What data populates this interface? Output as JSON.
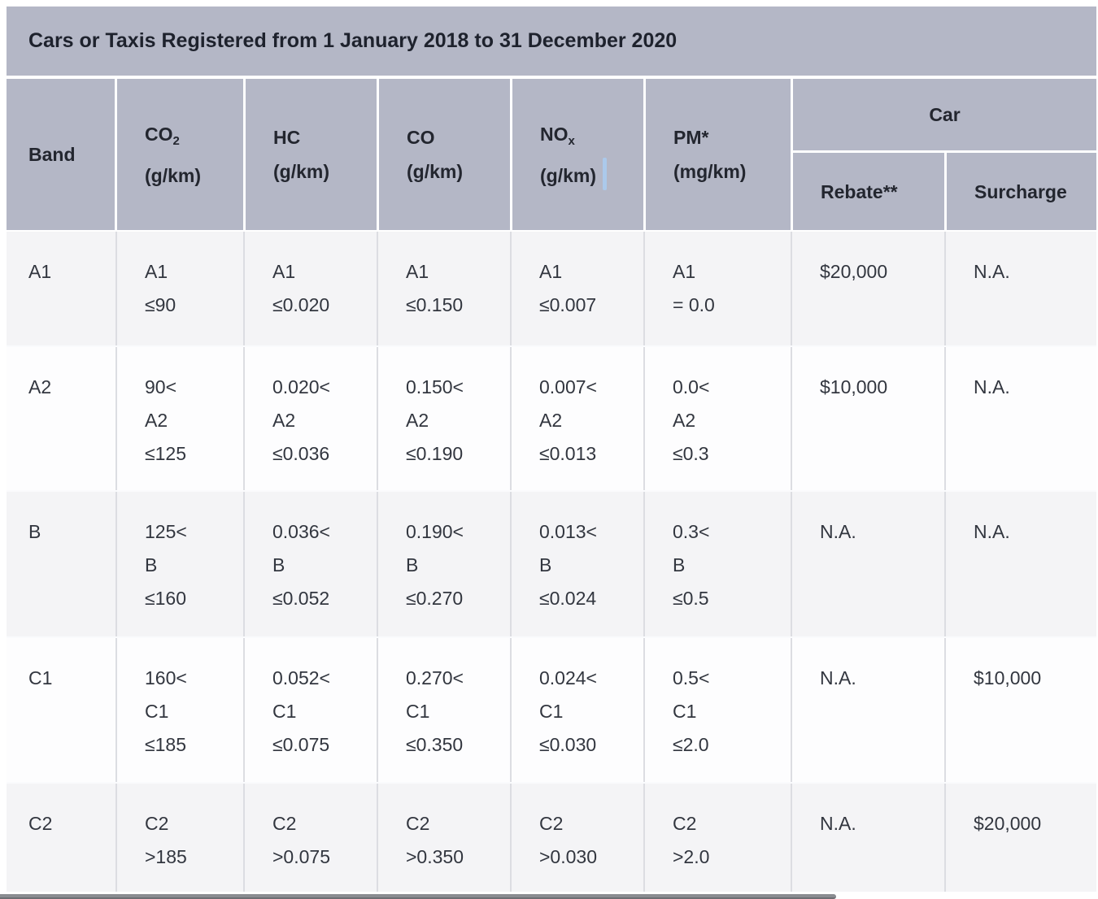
{
  "title": "Cars or Taxis Registered from 1 January 2018 to 31 December 2020",
  "header": {
    "band_label": "Band",
    "pollutant_columns": [
      {
        "id": "co2",
        "label": "CO",
        "sub": "2",
        "unit": "(g/km)"
      },
      {
        "id": "hc",
        "label": "HC",
        "sub": "",
        "unit": "(g/km)"
      },
      {
        "id": "co",
        "label": "CO",
        "sub": "",
        "unit": "(g/km)"
      },
      {
        "id": "nox",
        "label": "NO",
        "sub": "x",
        "unit": "(g/km)"
      },
      {
        "id": "pm",
        "label": "PM*",
        "sub": "",
        "unit": "(mg/km)"
      }
    ],
    "car_group": {
      "label": "Car",
      "rebate_label": "Rebate**",
      "surcharge_label": "Surcharge"
    }
  },
  "rows": [
    {
      "band": "A1",
      "co2": [
        "A1",
        "≤90"
      ],
      "hc": [
        "A1",
        "≤0.020"
      ],
      "co": [
        "A1",
        "≤0.150"
      ],
      "nox": [
        "A1",
        "≤0.007"
      ],
      "pm": [
        "A1",
        "= 0.0"
      ],
      "rebate": "$20,000",
      "surcharge": "N.A."
    },
    {
      "band": "A2",
      "co2": [
        "90<",
        "A2",
        "≤125"
      ],
      "hc": [
        "0.020<",
        "A2",
        "≤0.036"
      ],
      "co": [
        "0.150<",
        "A2",
        "≤0.190"
      ],
      "nox": [
        "0.007<",
        "A2",
        "≤0.013"
      ],
      "pm": [
        "0.0<",
        "A2",
        "≤0.3"
      ],
      "rebate": "$10,000",
      "surcharge": "N.A."
    },
    {
      "band": "B",
      "co2": [
        "125<",
        "B",
        "≤160"
      ],
      "hc": [
        "0.036<",
        "B",
        "≤0.052"
      ],
      "co": [
        "0.190<",
        "B",
        "≤0.270"
      ],
      "nox": [
        "0.013<",
        "B",
        "≤0.024"
      ],
      "pm": [
        "0.3<",
        "B",
        "≤0.5"
      ],
      "rebate": "N.A.",
      "surcharge": "N.A."
    },
    {
      "band": "C1",
      "co2": [
        "160<",
        "C1",
        "≤185"
      ],
      "hc": [
        "0.052<",
        "C1",
        "≤0.075"
      ],
      "co": [
        "0.270<",
        "C1",
        "≤0.350"
      ],
      "nox": [
        "0.024<",
        "C1",
        "≤0.030"
      ],
      "pm": [
        "0.5<",
        "C1",
        "≤2.0"
      ],
      "rebate": "N.A.",
      "surcharge": "$10,000"
    },
    {
      "band": "C2",
      "co2": [
        "C2",
        ">185"
      ],
      "hc": [
        "C2",
        ">0.075"
      ],
      "co": [
        "C2",
        ">0.350"
      ],
      "nox": [
        "C2",
        ">0.030"
      ],
      "pm": [
        "C2",
        ">2.0"
      ],
      "rebate": "N.A.",
      "surcharge": "$20,000"
    }
  ],
  "colors": {
    "header_background": "#b4b7c6",
    "row_alternate": "#f4f4f6",
    "row_base": "#fdfdfe",
    "cell_border": "#dcdde2",
    "scrollbar_thumb": "#8a8c91",
    "selection_cursor": "#a9ccf1"
  }
}
